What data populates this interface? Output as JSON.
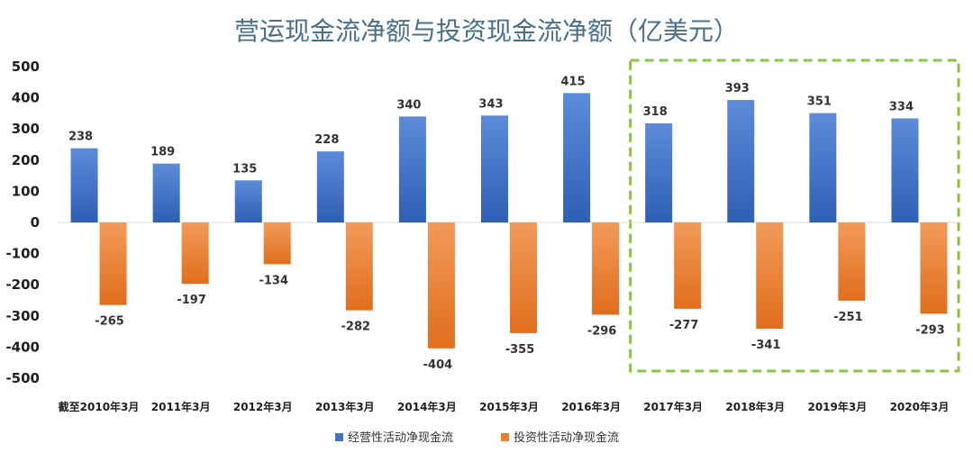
{
  "chart_data": {
    "type": "bar",
    "title": "营运现金流净额与投资现金流净额（亿美元）",
    "categories": [
      "截至2010年3月",
      "2011年3月",
      "2012年3月",
      "2013年3月",
      "2014年3月",
      "2015年3月",
      "2016年3月",
      "2017年3月",
      "2018年3月",
      "2019年3月",
      "2020年3月"
    ],
    "series": [
      {
        "name": "经营性活动净现金流",
        "values": [
          238,
          189,
          135,
          228,
          340,
          343,
          415,
          318,
          393,
          351,
          334
        ],
        "color": "#4472c4"
      },
      {
        "name": "投资性活动净现金流",
        "values": [
          -265,
          -197,
          -134,
          -282,
          -404,
          -355,
          -296,
          -277,
          -341,
          -251,
          -293
        ],
        "color": "#ed7d31"
      }
    ],
    "ylim": [
      -500,
      500
    ],
    "yticks": [
      500,
      400,
      300,
      200,
      100,
      0,
      -100,
      -200,
      -300,
      -400,
      -500
    ],
    "xlabel": "",
    "ylabel": "",
    "grid": false,
    "legend_position": "bottom",
    "highlight": {
      "from_category": "2017年3月",
      "to_category": "2020年3月",
      "color": "#8cc63f",
      "style": "dashed"
    }
  }
}
